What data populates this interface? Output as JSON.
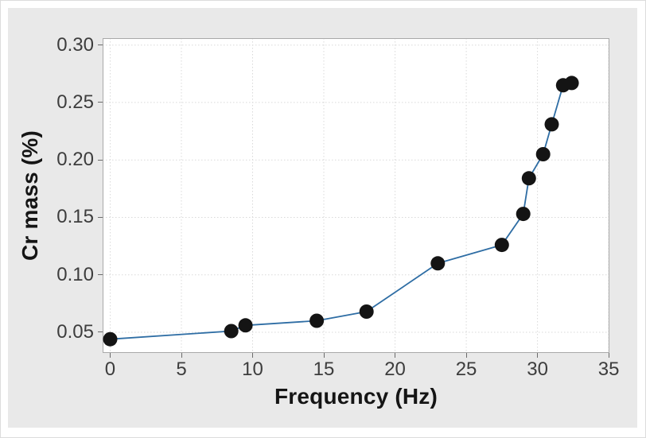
{
  "chart_data": {
    "type": "line",
    "title": "",
    "xlabel": "Frequency (Hz)",
    "ylabel": "Cr mass (%)",
    "x": [
      0,
      8.5,
      9.5,
      14.5,
      18,
      23,
      27.5,
      29,
      29.4,
      30.4,
      31,
      31.8,
      32.4
    ],
    "y": [
      0.044,
      0.051,
      0.056,
      0.06,
      0.068,
      0.11,
      0.126,
      0.153,
      0.184,
      0.205,
      0.231,
      0.265,
      0.267
    ],
    "xlim": [
      -0.53,
      35.05
    ],
    "ylim": [
      0.032,
      0.306
    ],
    "x_ticks": [
      {
        "value": 0,
        "label": "0"
      },
      {
        "value": 5,
        "label": "5"
      },
      {
        "value": 10,
        "label": "10"
      },
      {
        "value": 15,
        "label": "15"
      },
      {
        "value": 20,
        "label": "20"
      },
      {
        "value": 25,
        "label": "25"
      },
      {
        "value": 30,
        "label": "30"
      },
      {
        "value": 35,
        "label": "35"
      }
    ],
    "y_ticks": [
      {
        "value": 0.05,
        "label": "0.05"
      },
      {
        "value": 0.1,
        "label": "0.10"
      },
      {
        "value": 0.15,
        "label": "0.15"
      },
      {
        "value": 0.2,
        "label": "0.20"
      },
      {
        "value": 0.25,
        "label": "0.25"
      },
      {
        "value": 0.3,
        "label": "0.30"
      }
    ],
    "grid": true,
    "legend": "none",
    "colors": {
      "line": "#2e6da4",
      "marker": "#141414",
      "grid": "#d9d9d9",
      "panel_bg": "#e9e9e9",
      "plot_bg": "#ffffff",
      "plot_border": "#a9a9a9",
      "tick": "#6b6b6b",
      "tick_label": "#3d3d3d",
      "axis_title": "#151515"
    }
  }
}
